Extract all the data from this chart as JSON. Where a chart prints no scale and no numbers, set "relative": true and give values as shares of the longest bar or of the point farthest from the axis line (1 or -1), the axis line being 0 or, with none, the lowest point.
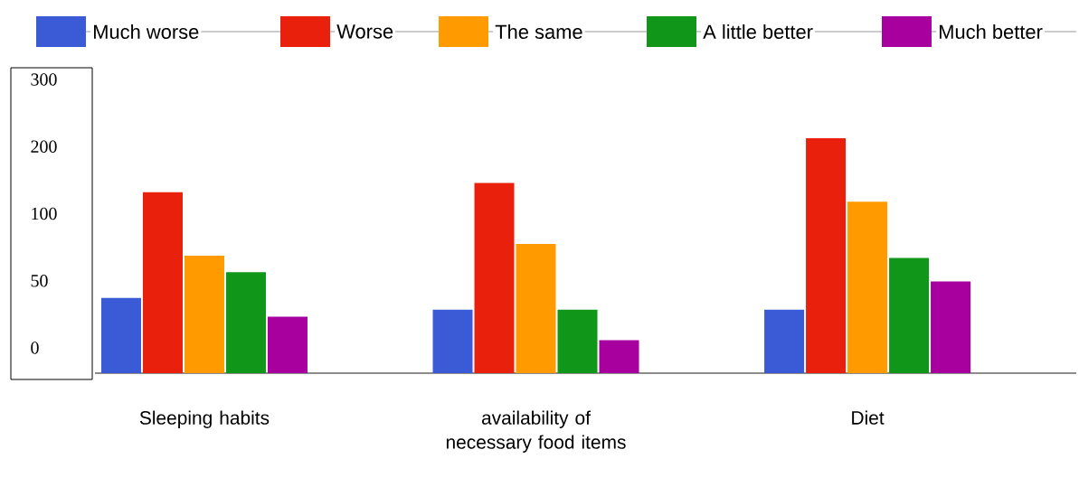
{
  "chart_data": {
    "type": "bar",
    "relative": true,
    "legend": "top",
    "categories": [
      "Sleeping habits",
      "availability of necessary food items",
      "Diet"
    ],
    "series": [
      {
        "name": "Much worse",
        "color": "#3b5bd6",
        "values": [
          0.32,
          0.27,
          0.27
        ]
      },
      {
        "name": "Worse",
        "color": "#e8200c",
        "values": [
          0.77,
          0.81,
          1
        ]
      },
      {
        "name": "The same",
        "color": "#ff9a00",
        "values": [
          0.5,
          0.55,
          0.73
        ]
      },
      {
        "name": "A little better",
        "color": "#109618",
        "values": [
          0.43,
          0.27,
          0.49
        ]
      },
      {
        "name": "Much better",
        "color": "#a8009f",
        "values": [
          0.24,
          0.14,
          0.39
        ]
      }
    ],
    "annotations": [
      "300",
      "200",
      "100",
      "50",
      "0"
    ]
  }
}
